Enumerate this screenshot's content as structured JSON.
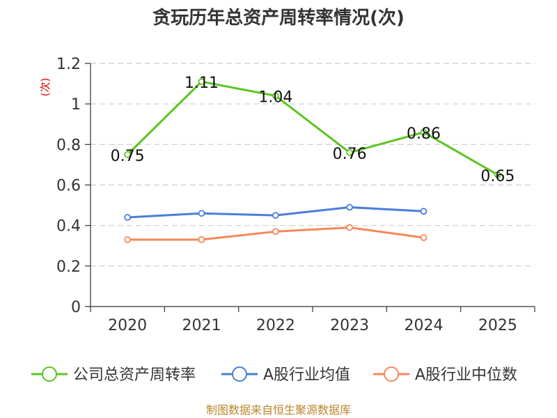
{
  "chart_data": {
    "type": "line",
    "title": "贪玩历年总资产周转率情况(次)",
    "ylabel": "(次)",
    "xlabel": "",
    "categories": [
      "2020",
      "2021",
      "2022",
      "2023",
      "2024",
      "2025"
    ],
    "ylim": [
      0,
      1.2
    ],
    "yticks": [
      "0",
      "0.2",
      "0.4",
      "0.6",
      "0.8",
      "1",
      "1.2"
    ],
    "grid": true,
    "legend_position": "bottom",
    "series": [
      {
        "name": "公司总资产周转率",
        "color": "#5cc420",
        "values": [
          0.75,
          1.11,
          1.04,
          0.76,
          0.86,
          0.65
        ],
        "labels": [
          "0.75",
          "1.11",
          "1.04",
          "0.76",
          "0.86",
          "0.65"
        ]
      },
      {
        "name": "A股行业均值",
        "color": "#4a7ddb",
        "values": [
          0.44,
          0.46,
          0.45,
          0.49,
          0.47,
          null
        ]
      },
      {
        "name": "A股行业中位数",
        "color": "#f5875a",
        "values": [
          0.33,
          0.33,
          0.37,
          0.39,
          0.34,
          null
        ]
      }
    ]
  },
  "source": "制图数据来自恒生聚源数据库"
}
